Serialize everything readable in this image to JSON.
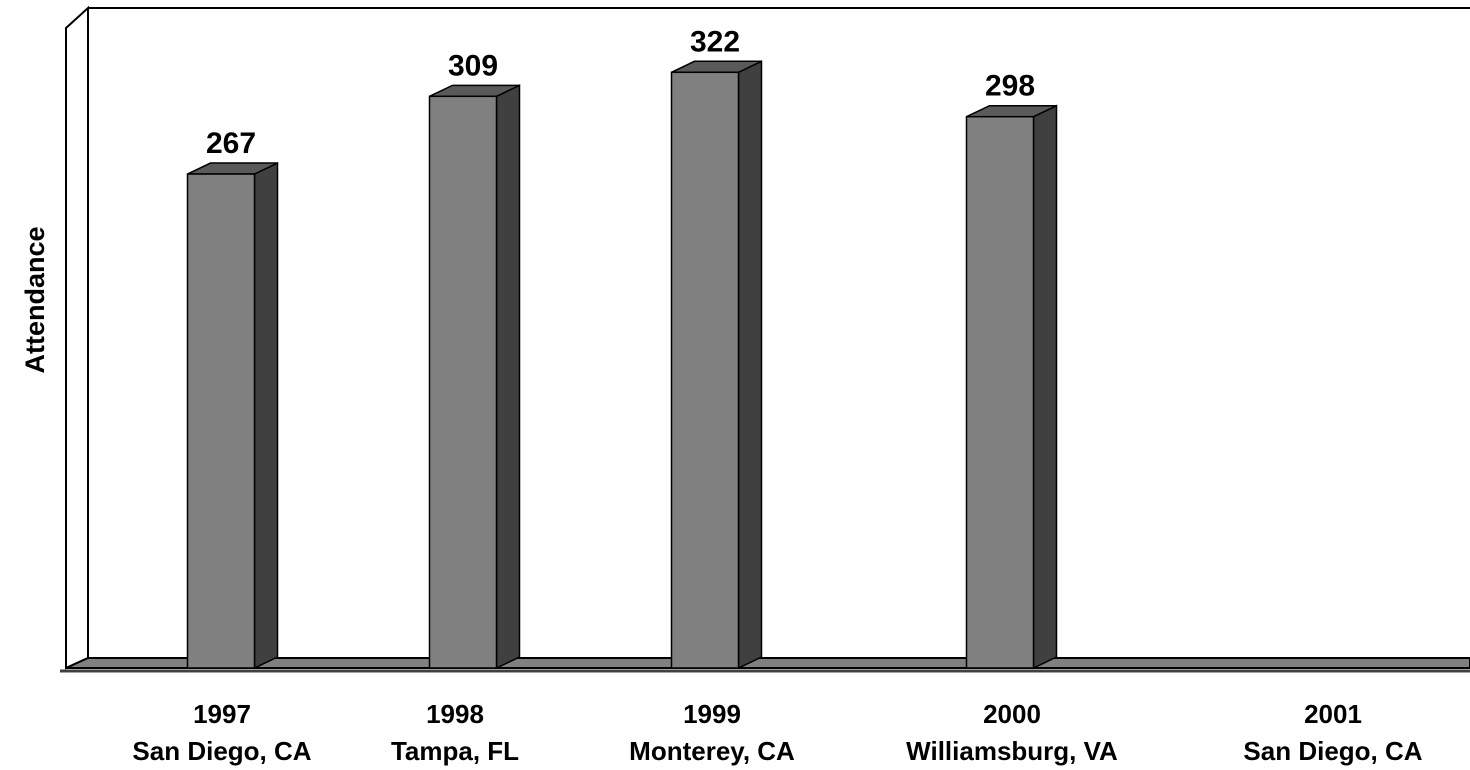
{
  "chart_data": {
    "type": "bar",
    "title": "",
    "xlabel": "",
    "ylabel": "Attendance",
    "categories": [
      {
        "year": "1997",
        "location": "San Diego, CA"
      },
      {
        "year": "1998",
        "location": "Tampa, FL"
      },
      {
        "year": "1999",
        "location": "Monterey, CA"
      },
      {
        "year": "2000",
        "location": "Williamsburg, VA"
      },
      {
        "year": "2001",
        "location": "San Diego, CA"
      }
    ],
    "values": [
      267,
      309,
      322,
      298,
      null
    ],
    "data_labels": [
      "267",
      "309",
      "322",
      "298",
      ""
    ],
    "ylim": [
      0,
      350
    ],
    "grid": false,
    "legend": "none",
    "style": "3d-column",
    "colors": {
      "bar_front": "#808080",
      "bar_side": "#404040",
      "bar_top": "#5a5a5a",
      "floor": "#808080",
      "background": "#ffffff",
      "outline": "#000000"
    }
  }
}
